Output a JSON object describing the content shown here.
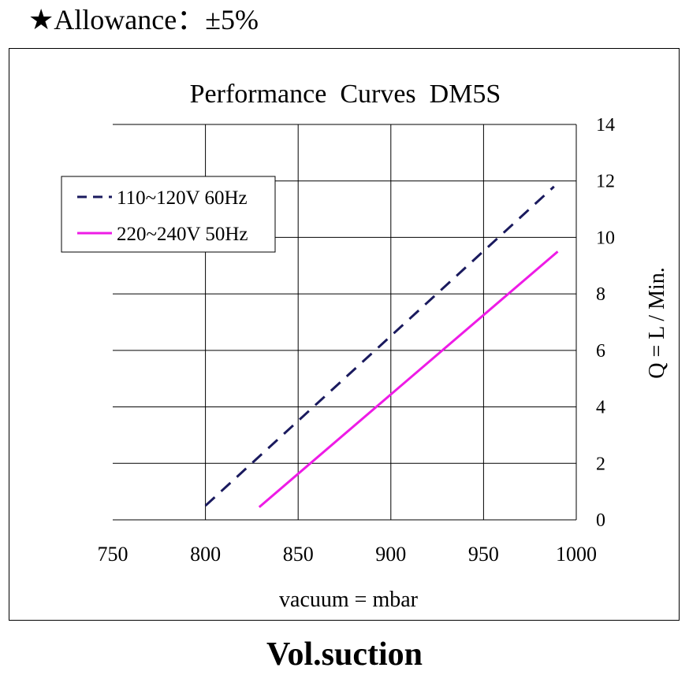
{
  "header": {
    "allowance_text": "★Allowance：±5%"
  },
  "footer": {
    "caption": "Vol.suction"
  },
  "colors": {
    "dashed_series": "#1a1a5e",
    "solid_series": "#ee1be6",
    "grid": "#000000"
  },
  "chart_data": {
    "type": "line",
    "title": "Performance  Curves  DM5S",
    "xlabel": "vacuum = mbar",
    "ylabel": "Q = L / Min.",
    "xlim": [
      750,
      1000
    ],
    "ylim": [
      0,
      14
    ],
    "xticks": [
      750,
      800,
      850,
      900,
      950,
      1000
    ],
    "yticks": [
      0,
      2,
      4,
      6,
      8,
      10,
      12,
      14
    ],
    "y_axis_side": "right",
    "grid": true,
    "legend_position": "top-left",
    "series": [
      {
        "name": "110~120V 60Hz",
        "style": "dashed",
        "color": "#1a1a5e",
        "points": [
          [
            800,
            0.5
          ],
          [
            988,
            11.8
          ]
        ]
      },
      {
        "name": "220~240V 50Hz",
        "style": "solid",
        "color": "#ee1be6",
        "points": [
          [
            829,
            0.45
          ],
          [
            990,
            9.5
          ]
        ]
      }
    ]
  }
}
